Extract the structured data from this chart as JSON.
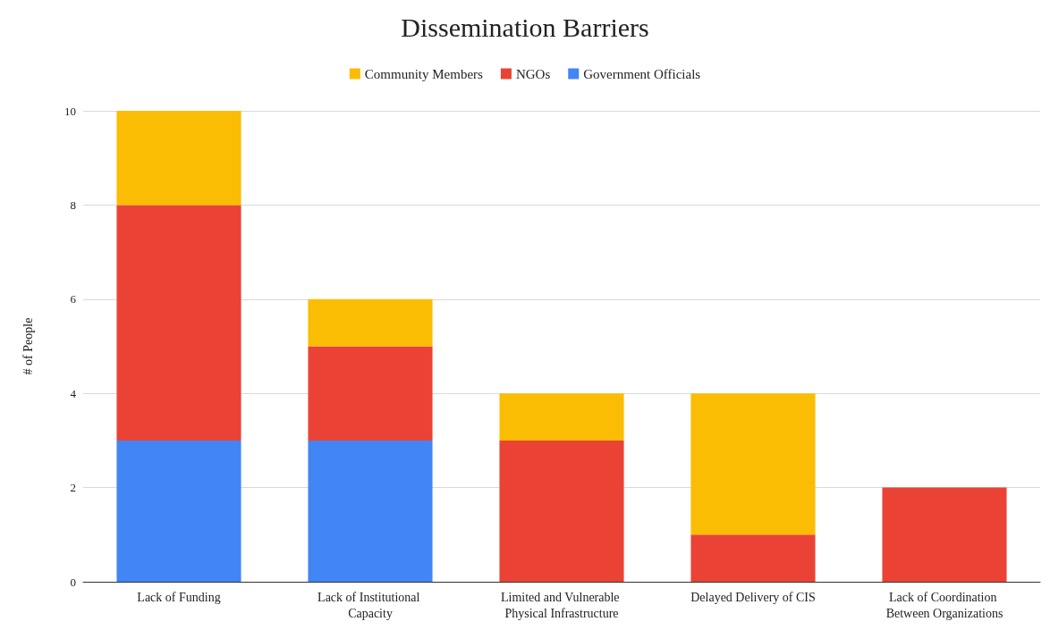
{
  "chart_data": {
    "type": "bar",
    "title": "Dissemination Barriers",
    "ylabel": "# of People",
    "categories": [
      "Lack of Funding",
      "Lack of Institutional Capacity",
      "Limited and Vulnerable Physical Infrastructure",
      "Delayed Delivery of CIS",
      "Lack of Coordination Between Organizations"
    ],
    "series": [
      {
        "name": "Government Officials",
        "color": "#4285f4",
        "values": [
          3,
          3,
          0,
          0,
          0
        ]
      },
      {
        "name": "NGOs",
        "color": "#ea4335",
        "values": [
          5,
          2,
          3,
          1,
          2
        ]
      },
      {
        "name": "Community Members",
        "color": "#fbbc04",
        "values": [
          2,
          1,
          1,
          3,
          0
        ]
      }
    ],
    "stacked": true,
    "ylim": [
      0,
      10
    ],
    "yticks": [
      0,
      2,
      4,
      6,
      8,
      10
    ],
    "grid": "y",
    "legend": "top"
  }
}
